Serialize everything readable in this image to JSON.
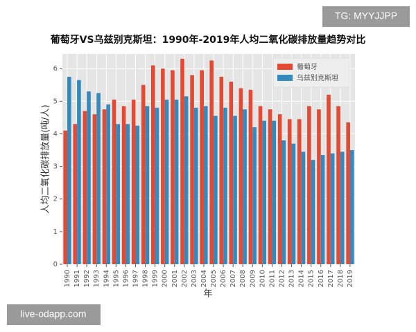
{
  "chart_data": {
    "type": "bar",
    "title": "葡萄牙VS乌兹别克斯坦：1990年-2019年人均二氧化碳排放量趋势对比",
    "x_label": "年",
    "y_label": "人均二氧化碳排放量(吨/人)",
    "categories": [
      "1990",
      "1991",
      "1992",
      "1993",
      "1994",
      "1995",
      "1996",
      "1997",
      "1998",
      "1999",
      "2000",
      "2001",
      "2002",
      "2003",
      "2004",
      "2005",
      "2006",
      "2007",
      "2008",
      "2009",
      "2010",
      "2011",
      "2012",
      "2013",
      "2014",
      "2015",
      "2016",
      "2017",
      "2018",
      "2019"
    ],
    "series": [
      {
        "name": "葡萄牙",
        "color": "#e24a33",
        "values": [
          4.1,
          4.3,
          4.7,
          4.6,
          4.75,
          5.05,
          4.85,
          5.05,
          5.5,
          6.1,
          6.0,
          5.95,
          6.3,
          5.8,
          5.95,
          6.25,
          5.75,
          5.6,
          5.4,
          5.35,
          4.85,
          4.75,
          4.6,
          4.45,
          4.45,
          4.85,
          4.75,
          5.2,
          4.85,
          4.35
        ]
      },
      {
        "name": "乌兹别克斯坦",
        "color": "#348abd",
        "values": [
          5.75,
          5.65,
          5.3,
          5.25,
          4.9,
          4.3,
          4.3,
          4.25,
          4.85,
          4.8,
          5.05,
          5.05,
          5.15,
          4.8,
          4.85,
          4.55,
          4.8,
          4.55,
          4.75,
          4.2,
          4.4,
          4.4,
          3.8,
          3.7,
          3.45,
          3.2,
          3.35,
          3.4,
          3.45,
          3.5
        ]
      }
    ],
    "ylim": [
      0,
      6.45
    ],
    "yticks": [
      0,
      1,
      2,
      3,
      4,
      5,
      6
    ],
    "grid": true,
    "legend_position": "upper right"
  },
  "watermarks": {
    "top": "TG: MYYJJPP",
    "bottom": "live-odapp.com"
  }
}
